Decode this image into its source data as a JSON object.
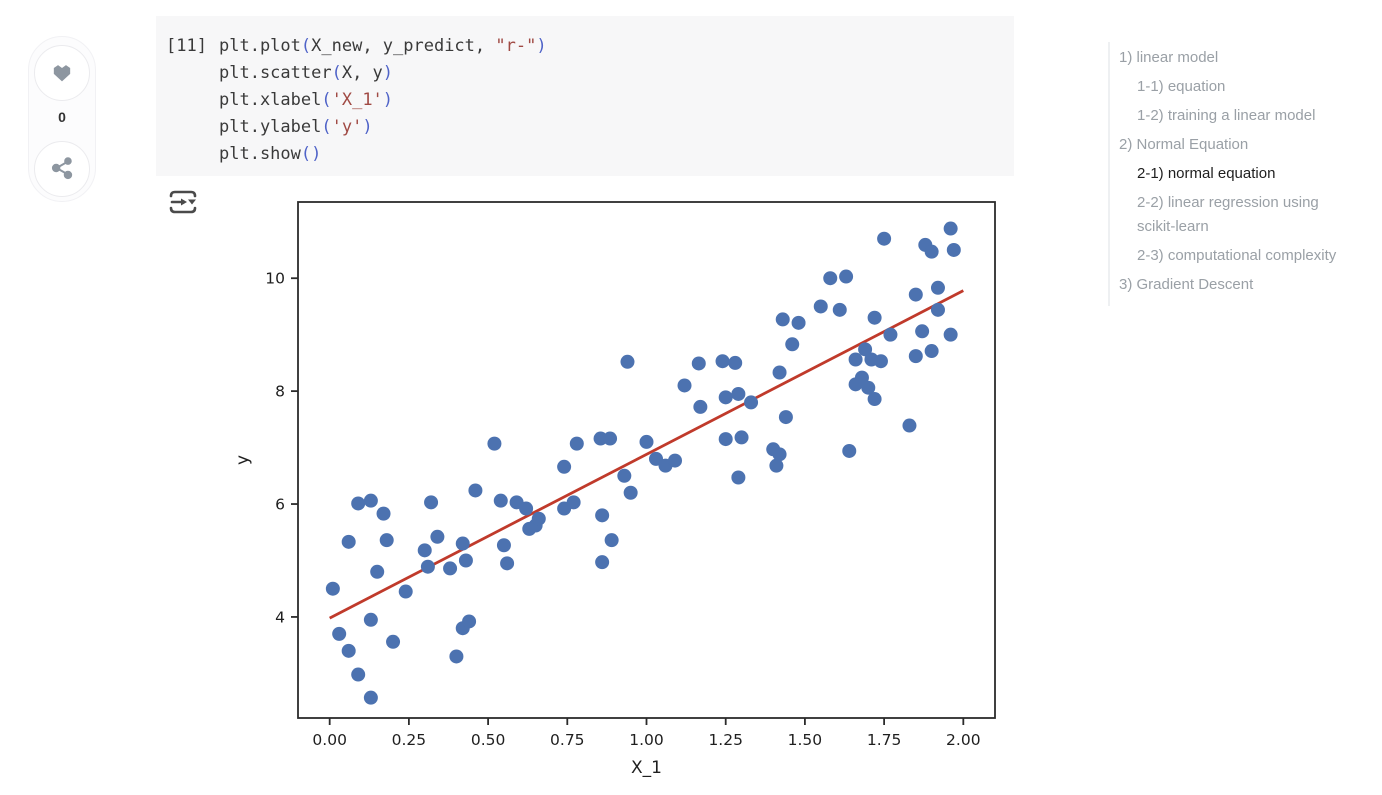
{
  "reactions": {
    "like_count": "0"
  },
  "code_cell": {
    "prompt": "[11]",
    "colors": {
      "id": "#3a3a3a",
      "p": "#4f63c8",
      "str": "#a04a44"
    },
    "lines": [
      [
        [
          "plt.plot",
          "id"
        ],
        [
          "(",
          "p"
        ],
        [
          "X_new, y_predict, ",
          "id"
        ],
        [
          "\"r-\"",
          "str"
        ],
        [
          ")",
          "p"
        ]
      ],
      [
        [
          "plt.scatter",
          "id"
        ],
        [
          "(",
          "p"
        ],
        [
          "X, y",
          "id"
        ],
        [
          ")",
          "p"
        ]
      ],
      [
        [
          "plt.xlabel",
          "id"
        ],
        [
          "(",
          "p"
        ],
        [
          "'X_1'",
          "str"
        ],
        [
          ")",
          "p"
        ]
      ],
      [
        [
          "plt.ylabel",
          "id"
        ],
        [
          "(",
          "p"
        ],
        [
          "'y'",
          "str"
        ],
        [
          ")",
          "p"
        ]
      ],
      [
        [
          "plt.show",
          "id"
        ],
        [
          "(",
          "p"
        ],
        [
          ")",
          "p"
        ]
      ]
    ]
  },
  "toc": {
    "items": [
      {
        "label": "1) linear model",
        "level": 1,
        "active": false
      },
      {
        "label": "1-1) equation",
        "level": 2,
        "active": false
      },
      {
        "label": "1-2) training a linear model",
        "level": 2,
        "active": false
      },
      {
        "label": "2) Normal Equation",
        "level": 1,
        "active": false
      },
      {
        "label": "2-1) normal equation",
        "level": 2,
        "active": true
      },
      {
        "label": "2-2) linear regression using scikit-learn",
        "level": 2,
        "active": false
      },
      {
        "label": "2-3) computational complexity",
        "level": 2,
        "active": false
      },
      {
        "label": "3) Gradient Descent",
        "level": 1,
        "active": false
      }
    ]
  },
  "chart_data": {
    "type": "scatter",
    "title": "",
    "xlabel": "X_1",
    "ylabel": "y",
    "xlim": [
      -0.1,
      2.1
    ],
    "ylim": [
      2.21,
      11.35
    ],
    "xticks": [
      "0.00",
      "0.25",
      "0.50",
      "0.75",
      "1.00",
      "1.25",
      "1.50",
      "1.75",
      "2.00"
    ],
    "yticks": [
      4,
      6,
      8,
      10
    ],
    "grid": false,
    "legend": "none",
    "series": [
      {
        "name": "plt.scatter(X, y)",
        "kind": "scatter",
        "color": "#4c72b0",
        "marker_radius": 7,
        "points": [
          [
            0.01,
            4.5
          ],
          [
            0.03,
            3.7
          ],
          [
            0.06,
            3.4
          ],
          [
            0.06,
            5.33
          ],
          [
            0.09,
            2.98
          ],
          [
            0.09,
            6.01
          ],
          [
            0.13,
            6.06
          ],
          [
            0.13,
            2.57
          ],
          [
            0.13,
            3.95
          ],
          [
            0.15,
            4.8
          ],
          [
            0.17,
            5.83
          ],
          [
            0.18,
            5.36
          ],
          [
            0.2,
            3.56
          ],
          [
            0.24,
            4.45
          ],
          [
            0.3,
            5.18
          ],
          [
            0.31,
            4.89
          ],
          [
            0.32,
            6.03
          ],
          [
            0.34,
            5.42
          ],
          [
            0.38,
            4.86
          ],
          [
            0.4,
            3.3
          ],
          [
            0.42,
            5.3
          ],
          [
            0.42,
            3.8
          ],
          [
            0.43,
            5.0
          ],
          [
            0.44,
            3.92
          ],
          [
            0.46,
            6.24
          ],
          [
            0.52,
            7.07
          ],
          [
            0.54,
            6.06
          ],
          [
            0.55,
            5.27
          ],
          [
            0.56,
            4.95
          ],
          [
            0.59,
            6.03
          ],
          [
            0.62,
            5.92
          ],
          [
            0.63,
            5.56
          ],
          [
            0.65,
            5.62
          ],
          [
            0.66,
            5.74
          ],
          [
            0.74,
            6.66
          ],
          [
            0.74,
            5.92
          ],
          [
            0.77,
            6.03
          ],
          [
            0.78,
            7.07
          ],
          [
            0.855,
            7.16
          ],
          [
            0.885,
            7.16
          ],
          [
            0.86,
            5.8
          ],
          [
            0.86,
            4.97
          ],
          [
            0.89,
            5.36
          ],
          [
            0.93,
            6.5
          ],
          [
            0.94,
            8.52
          ],
          [
            0.95,
            6.2
          ],
          [
            1.0,
            7.1
          ],
          [
            1.03,
            6.8
          ],
          [
            1.06,
            6.68
          ],
          [
            1.09,
            6.77
          ],
          [
            1.12,
            8.1
          ],
          [
            1.165,
            8.49
          ],
          [
            1.17,
            7.72
          ],
          [
            1.24,
            8.53
          ],
          [
            1.25,
            7.89
          ],
          [
            1.25,
            7.15
          ],
          [
            1.28,
            8.5
          ],
          [
            1.29,
            7.95
          ],
          [
            1.29,
            6.47
          ],
          [
            1.3,
            7.18
          ],
          [
            1.33,
            7.8
          ],
          [
            1.4,
            6.97
          ],
          [
            1.41,
            6.68
          ],
          [
            1.42,
            8.33
          ],
          [
            1.42,
            6.88
          ],
          [
            1.43,
            9.27
          ],
          [
            1.44,
            7.54
          ],
          [
            1.46,
            8.83
          ],
          [
            1.48,
            9.21
          ],
          [
            1.55,
            9.5
          ],
          [
            1.58,
            10.0
          ],
          [
            1.61,
            9.44
          ],
          [
            1.63,
            10.03
          ],
          [
            1.64,
            6.94
          ],
          [
            1.66,
            8.56
          ],
          [
            1.66,
            8.12
          ],
          [
            1.68,
            8.24
          ],
          [
            1.69,
            8.74
          ],
          [
            1.7,
            8.06
          ],
          [
            1.71,
            8.56
          ],
          [
            1.72,
            9.3
          ],
          [
            1.72,
            7.86
          ],
          [
            1.74,
            8.53
          ],
          [
            1.75,
            10.7
          ],
          [
            1.77,
            9.0
          ],
          [
            1.83,
            7.39
          ],
          [
            1.85,
            9.71
          ],
          [
            1.85,
            8.62
          ],
          [
            1.87,
            9.06
          ],
          [
            1.88,
            10.59
          ],
          [
            1.9,
            10.47
          ],
          [
            1.9,
            8.71
          ],
          [
            1.92,
            9.83
          ],
          [
            1.92,
            9.44
          ],
          [
            1.96,
            10.88
          ],
          [
            1.96,
            9.0
          ],
          [
            1.97,
            10.5
          ]
        ]
      },
      {
        "name": "plt.plot(X_new, y_predict, \"r-\")",
        "kind": "line",
        "color": "#c03a2b",
        "width": 2.8,
        "points": [
          [
            0,
            3.98
          ],
          [
            2,
            9.78
          ]
        ]
      }
    ]
  }
}
